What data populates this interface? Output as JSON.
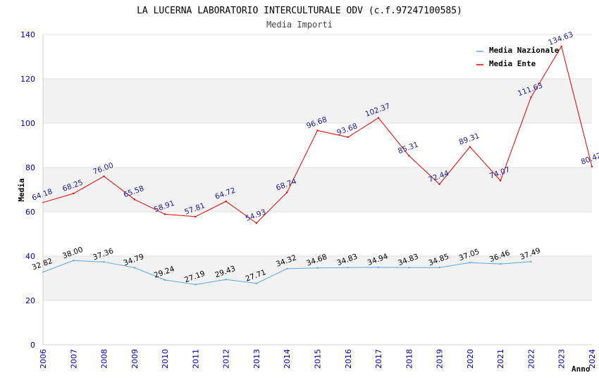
{
  "chart_data": {
    "type": "line",
    "title": "LA LUCERNA LABORATORIO INTERCULTURALE ODV (c.f.97247100585)",
    "subtitle": "Media Importi",
    "xlabel": "Anno",
    "ylabel": "Media",
    "ylim": [
      0,
      140
    ],
    "yticks": [
      "0",
      "20",
      "40",
      "60",
      "80",
      "100",
      "120",
      "140"
    ],
    "x": [
      "2006",
      "2007",
      "2008",
      "2009",
      "2010",
      "2011",
      "2012",
      "2013",
      "2014",
      "2015",
      "2016",
      "2017",
      "2018",
      "2019",
      "2020",
      "2021",
      "2022",
      "2023",
      "2024"
    ],
    "legend_position": "top-right",
    "series": [
      {
        "key": "nazionale",
        "name": "Media Nazionale",
        "color": "#5aa6e6",
        "label_color": "#000000",
        "values": [
          32.82,
          38.0,
          37.36,
          34.79,
          29.24,
          27.19,
          29.43,
          27.71,
          34.32,
          34.68,
          34.83,
          34.94,
          34.83,
          34.85,
          37.05,
          36.46,
          37.49,
          null,
          null
        ],
        "labels": [
          "32.82",
          "38.00",
          "37.36",
          "34.79",
          "29.24",
          "27.19",
          "29.43",
          "27.71",
          "34.32",
          "34.68",
          "34.83",
          "34.94",
          "34.83",
          "34.85",
          "37.05",
          "36.46",
          "37.49",
          null,
          null
        ]
      },
      {
        "key": "ente",
        "name": "Media Ente",
        "color": "#e60000",
        "label_color": "#1a1a8c",
        "values": [
          64.18,
          68.25,
          76.0,
          65.58,
          58.91,
          57.81,
          64.72,
          54.93,
          68.74,
          96.68,
          93.68,
          102.37,
          85.31,
          72.44,
          89.31,
          74.07,
          111.63,
          134.63,
          80.42
        ],
        "labels": [
          "64.18",
          "68.25",
          "76.00",
          "65.58",
          "58.91",
          "57.81",
          "64.72",
          "54.93",
          "68.74",
          "96.68",
          "93.68",
          "102.37",
          "85.31",
          "72.44",
          "89.31",
          "74.07",
          "111.63",
          "134.63",
          "80.42"
        ]
      }
    ]
  }
}
